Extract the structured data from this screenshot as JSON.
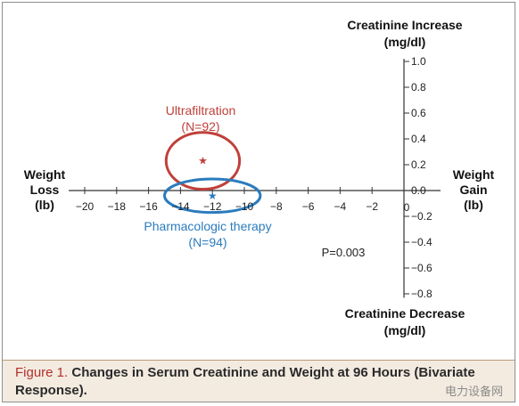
{
  "chart_data": {
    "type": "scatter",
    "x_axis": {
      "ticks": [
        -20,
        -18,
        -16,
        -14,
        -12,
        -10,
        -8,
        -6,
        -4,
        -2,
        0
      ],
      "tick_labels": [
        "−20",
        "−18",
        "−16",
        "−14",
        "−12",
        "−10",
        "−8",
        "−6",
        "−4",
        "−2",
        "0"
      ],
      "range": [
        -21,
        0
      ],
      "left_label": [
        "Weight",
        "Loss",
        "(lb)"
      ],
      "right_label": [
        "Weight",
        "Gain",
        "(lb)"
      ]
    },
    "y_axis": {
      "ticks": [
        1.0,
        0.8,
        0.6,
        0.4,
        0.2,
        0.0,
        -0.2,
        -0.4,
        -0.6,
        -0.8
      ],
      "tick_labels": [
        "1.0",
        "0.8",
        "0.6",
        "0.4",
        "0.2",
        "0.0",
        "−0.2",
        "−0.4",
        "−0.6",
        "−0.8"
      ],
      "range": [
        -0.8,
        1.0
      ],
      "top_label": [
        "Creatinine Increase",
        "(mg/dl)"
      ],
      "bottom_label": [
        "Creatinine Decrease",
        "(mg/dl)"
      ]
    },
    "series": [
      {
        "name": "Ultrafiltration",
        "n_label": "(N=92)",
        "x": -12.6,
        "y": 0.23,
        "ellipse_half_width": 2.3,
        "ellipse_half_height": 0.22,
        "color": "#c0403a"
      },
      {
        "name": "Pharmacologic therapy",
        "n_label": "(N=94)",
        "x": -12.0,
        "y": -0.04,
        "ellipse_half_width": 3.0,
        "ellipse_half_height": 0.13,
        "color": "#2b7bbd"
      }
    ],
    "annotation": "P=0.003"
  },
  "caption": {
    "figure_label": "Figure 1.",
    "text": "Changes in Serum Creatinine and Weight at 96 Hours (Bivariate Response)."
  },
  "watermark": "电力设备网"
}
